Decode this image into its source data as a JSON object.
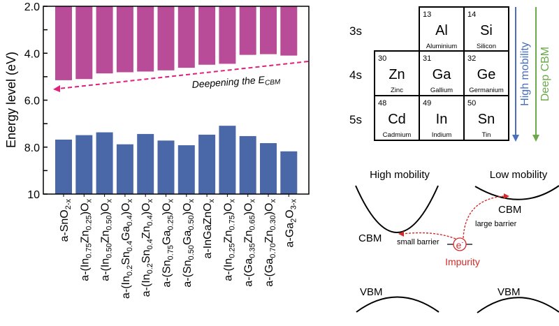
{
  "chart_data": {
    "type": "bar",
    "title": "",
    "xlabel": "",
    "ylabel": "Energy level (eV)",
    "ylim": [
      2.0,
      10
    ],
    "y_inverted": true,
    "yticks": [
      "2.0",
      "4.0",
      "6.0",
      "8.0",
      "10"
    ],
    "categories": [
      "a-SnO_{2-x}",
      "a-(In_{0.75}Zn_{0.25})O_{x}",
      "a-(In_{0.50}Zn_{0.50})O_{x}",
      "a-(In_{0.2}Sn_{0.4}Ga_{0.4})O_{x}",
      "a-(In_{0.2}Sn_{0.4}Zn_{0.4})O_{x}",
      "a-(Sn_{0.75}Ga_{0.25})O_{x}",
      "a-(Sn_{0.50}Ga_{0.50})O_{x}",
      "a-InGaZnO_{x}",
      "a-(In_{0.25}Zn_{0.75})O_{x}",
      "a-(Ga_{0.35}Zn_{0.65})O_{x}",
      "a-(Ga_{0.70}Zn_{0.30})O_{x}",
      "a-Ga_{2}O_{3-x}"
    ],
    "series": [
      {
        "name": "CBM",
        "color": "#b94c98",
        "values": [
          5.15,
          5.1,
          4.86,
          4.81,
          4.78,
          4.73,
          4.62,
          4.49,
          4.45,
          4.07,
          4.04,
          4.1
        ]
      },
      {
        "name": "VBM",
        "color": "#4a68a8",
        "values": [
          7.68,
          7.49,
          7.37,
          7.88,
          7.44,
          7.72,
          7.92,
          7.47,
          7.09,
          7.53,
          7.83,
          8.18
        ]
      }
    ],
    "annotation": {
      "text": "Deepening the E",
      "sub": "CBM",
      "color": "#e0207a"
    }
  },
  "periodic_table": {
    "rows": [
      "3s",
      "4s",
      "5s"
    ],
    "cells": [
      {
        "num": "13",
        "sym": "Al",
        "name": "Aluminium",
        "row": 0,
        "col": 1
      },
      {
        "num": "14",
        "sym": "Si",
        "name": "Silicon",
        "row": 0,
        "col": 2
      },
      {
        "num": "30",
        "sym": "Zn",
        "name": "Zinc",
        "row": 1,
        "col": 0
      },
      {
        "num": "31",
        "sym": "Ga",
        "name": "Gallium",
        "row": 1,
        "col": 1
      },
      {
        "num": "32",
        "sym": "Ge",
        "name": "Germanium",
        "row": 1,
        "col": 2
      },
      {
        "num": "48",
        "sym": "Cd",
        "name": "Cadmium",
        "row": 2,
        "col": 0
      },
      {
        "num": "49",
        "sym": "In",
        "name": "Indium",
        "row": 2,
        "col": 1
      },
      {
        "num": "50",
        "sym": "Sn",
        "name": "Tin",
        "row": 2,
        "col": 2
      }
    ],
    "arrow_high_mobility": "High mobility",
    "arrow_deep_cbm": "Deep CBM",
    "colors": {
      "high_mobility": "#4a6fc0",
      "deep_cbm": "#6aaa48"
    }
  },
  "band_diagram": {
    "high_mobility": "High mobility",
    "low_mobility": "Low mobility",
    "cbm": "CBM",
    "vbm": "VBM",
    "small_barrier": "small barrier",
    "large_barrier": "large barrier",
    "electron": "e",
    "impurity": "Impurity",
    "red": "#d42a2a"
  }
}
